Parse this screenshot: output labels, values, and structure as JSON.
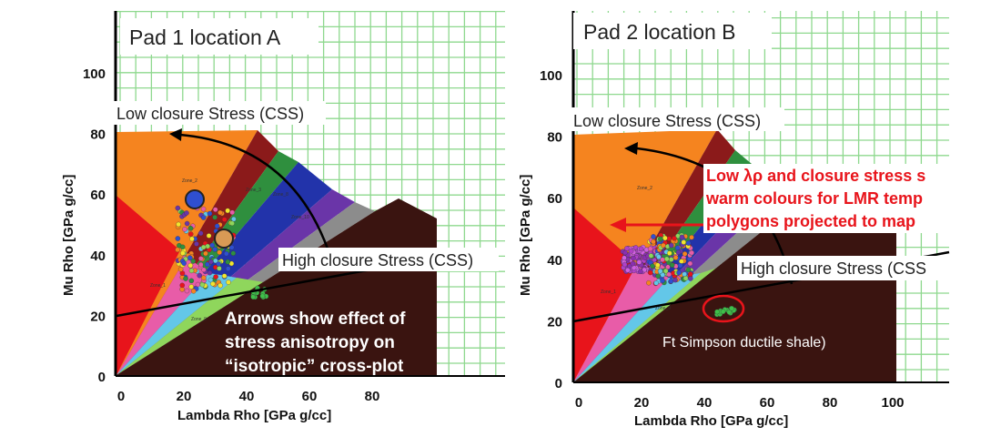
{
  "colors": {
    "grid": "#8ed88e",
    "shale": "#3a1410",
    "yellow": "#f2e52e",
    "orange": "#f5841f",
    "darkred": "#8b1a1a",
    "green": "#2f8f3e",
    "blue": "#2233aa",
    "purple": "#6a35a8",
    "gray": "#8c8c8c",
    "lightgray": "#d8d8d8",
    "red": "#e8141b"
  },
  "panels": [
    {
      "title": "Pad 1 location A",
      "low_css_label": "Low closure Stress (CSS)",
      "high_css_label": "High closure Stress (CSS)",
      "note_lines": [
        "Arrows show effect of",
        "stress anisotropy on",
        "“isotropic” cross-plot"
      ]
    },
    {
      "title": "Pad 2 location B",
      "low_css_label": "Low closure Stress (CSS)",
      "high_css_label": "High closure Stress (CSS",
      "note_lines": [
        "Low λρ and closure stress s",
        "warm colours for LMR temp",
        "polygons projected to map"
      ],
      "shale_label": "Ft Simpson ductile shale)"
    }
  ],
  "chart_data": [
    {
      "type": "scatter",
      "title": "Pad 1 location A",
      "xlabel": "Lambda Rho [GPa g/cc]",
      "ylabel": "Mu Rho [GPa g/cc]",
      "xlim": [
        0,
        100
      ],
      "ylim": [
        0,
        120
      ],
      "x_ticks": [
        "0",
        "20",
        "40",
        "60",
        "80"
      ],
      "y_ticks": [
        "0",
        "20",
        "40",
        "60",
        "80",
        "100"
      ],
      "grid": true,
      "brittleness_trend_line": {
        "x": [
          0,
          100
        ],
        "y": [
          20,
          37
        ]
      },
      "markers": [
        {
          "name": "blue circle",
          "x": 25,
          "y": 58
        },
        {
          "name": "orange circle",
          "x": 34,
          "y": 45
        }
      ],
      "clusters": [
        {
          "name": "well-log points",
          "x_range": [
            18,
            36
          ],
          "y_range": [
            28,
            56
          ]
        },
        {
          "name": "shale points",
          "x_range": [
            42,
            47
          ],
          "y_range": [
            26,
            29
          ]
        }
      ]
    },
    {
      "type": "scatter",
      "title": "Pad 2 location B",
      "xlabel": "Lambda Rho [GPa g/cc]",
      "ylabel": "Mu Rho [GPa g/cc]",
      "xlim": [
        0,
        115
      ],
      "ylim": [
        0,
        120
      ],
      "x_ticks": [
        "0",
        "20",
        "40",
        "60",
        "80",
        "100"
      ],
      "y_ticks": [
        "0",
        "20",
        "40",
        "60",
        "80",
        "100"
      ],
      "grid": true,
      "brittleness_trend_line": {
        "x": [
          0,
          110
        ],
        "y": [
          20,
          42
        ]
      },
      "clusters": [
        {
          "name": "purple points",
          "x_range": [
            14,
            26
          ],
          "y_range": [
            36,
            44
          ]
        },
        {
          "name": "well-log points",
          "x_range": [
            22,
            36
          ],
          "y_range": [
            32,
            48
          ]
        },
        {
          "name": "shale points",
          "x_range": [
            43,
            50
          ],
          "y_range": [
            22,
            25
          ]
        }
      ]
    }
  ]
}
